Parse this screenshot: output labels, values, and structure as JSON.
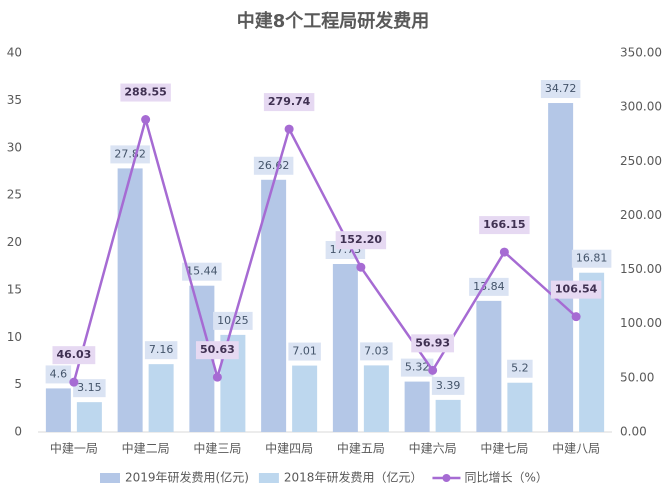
{
  "chart_data": {
    "type": "bar",
    "title": "中建8个工程局研发费用",
    "categories": [
      "中建一局",
      "中建二局",
      "中建三局",
      "中建四局",
      "中建五局",
      "中建六局",
      "中建七局",
      "中建八局"
    ],
    "series": [
      {
        "name": "2019年研发费用(亿元)",
        "color": "#b4c7e7",
        "values": [
          4.6,
          27.82,
          15.44,
          26.62,
          17.73,
          5.32,
          13.84,
          34.72
        ]
      },
      {
        "name": "2018年研发费用（亿元）",
        "color": "#bdd7ee",
        "values": [
          3.15,
          7.16,
          10.25,
          7.01,
          7.03,
          3.39,
          5.2,
          16.81
        ]
      },
      {
        "name": "同比增长（%）",
        "color": "#a66bd3",
        "type": "line",
        "axis": "y2",
        "values": [
          46.03,
          288.55,
          50.63,
          279.74,
          152.2,
          56.93,
          166.15,
          106.54
        ],
        "value_labels": [
          "46.03",
          "288.55",
          "50.63",
          "279.74",
          "152.20",
          "56.93",
          "166.15",
          "106.54"
        ]
      }
    ],
    "ylim": [
      0,
      40
    ],
    "yticks": [
      0,
      5,
      10,
      15,
      20,
      25,
      30,
      35,
      40
    ],
    "y2lim": [
      0,
      350
    ],
    "y2ticks": [
      {
        "value": 0,
        "label": "0.00"
      },
      {
        "value": 50,
        "label": "50.00"
      },
      {
        "value": 100,
        "label": "100.00"
      },
      {
        "value": 150,
        "label": "150.00"
      },
      {
        "value": 200,
        "label": "200.00"
      },
      {
        "value": 250,
        "label": "250.00"
      },
      {
        "value": 300,
        "label": "300.00"
      },
      {
        "value": 350,
        "label": "350.00"
      }
    ],
    "grid": false
  }
}
